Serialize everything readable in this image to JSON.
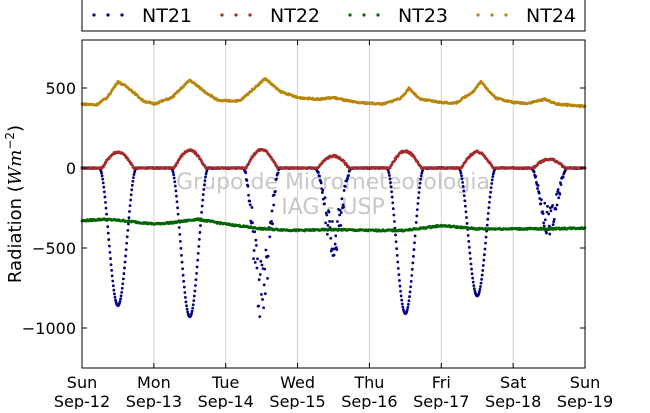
{
  "chart_data": {
    "type": "scatter",
    "title": "",
    "xlabel": "",
    "ylabel": "Radiation",
    "ylabel_unit_base": "Wm",
    "ylabel_unit_exp": "−2",
    "ylim": [
      -1250,
      800
    ],
    "xlim": [
      0,
      7
    ],
    "yticks": [
      500,
      0,
      -500,
      -1000
    ],
    "ytick_labels": [
      "500",
      "0",
      "−500",
      "−1000"
    ],
    "xticks": [
      {
        "day": 0,
        "weekday": "Sun",
        "date": "Sep-12"
      },
      {
        "day": 1,
        "weekday": "Mon",
        "date": "Sep-13"
      },
      {
        "day": 2,
        "weekday": "Tue",
        "date": "Sep-14"
      },
      {
        "day": 3,
        "weekday": "Wed",
        "date": "Sep-15"
      },
      {
        "day": 4,
        "weekday": "Thu",
        "date": "Sep-16"
      },
      {
        "day": 5,
        "weekday": "Fri",
        "date": "Sep-17"
      },
      {
        "day": 6,
        "weekday": "Sat",
        "date": "Sep-18"
      },
      {
        "day": 7,
        "weekday": "Sun",
        "date": "Sep-19"
      }
    ],
    "grid": "vertical",
    "legend_position": "top",
    "watermark": [
      "Grupo de Micrometeorologia",
      "IAG - USP"
    ],
    "series": [
      {
        "name": "NT21",
        "color": "#000080",
        "baseline": 0,
        "daily_minimum": [
          -860,
          -930,
          -960,
          -560,
          -910,
          -800,
          -440
        ],
        "daily_peak_time": [
          0.5,
          0.5,
          0.5,
          0.5,
          0.5,
          0.5,
          0.5
        ]
      },
      {
        "name": "NT22",
        "color": "#a52a2a",
        "baseline": 0,
        "daily_maximum": [
          100,
          110,
          115,
          75,
          105,
          100,
          55
        ]
      },
      {
        "name": "NT23",
        "color": "#006400",
        "points": [
          [
            0.0,
            -330
          ],
          [
            0.3,
            -320
          ],
          [
            0.6,
            -330
          ],
          [
            1.0,
            -350
          ],
          [
            1.3,
            -340
          ],
          [
            1.6,
            -320
          ],
          [
            2.0,
            -350
          ],
          [
            2.5,
            -380
          ],
          [
            3.0,
            -390
          ],
          [
            3.5,
            -385
          ],
          [
            4.0,
            -390
          ],
          [
            4.5,
            -390
          ],
          [
            5.0,
            -360
          ],
          [
            5.5,
            -380
          ],
          [
            6.0,
            -380
          ],
          [
            6.5,
            -380
          ],
          [
            7.0,
            -375
          ]
        ]
      },
      {
        "name": "NT24",
        "color": "#b8860b",
        "points": [
          [
            0.0,
            400
          ],
          [
            0.2,
            395
          ],
          [
            0.35,
            440
          ],
          [
            0.5,
            540
          ],
          [
            0.65,
            500
          ],
          [
            0.85,
            420
          ],
          [
            1.0,
            400
          ],
          [
            1.25,
            440
          ],
          [
            1.5,
            550
          ],
          [
            1.7,
            480
          ],
          [
            1.9,
            420
          ],
          [
            2.2,
            420
          ],
          [
            2.4,
            500
          ],
          [
            2.55,
            560
          ],
          [
            2.75,
            480
          ],
          [
            3.0,
            440
          ],
          [
            3.3,
            430
          ],
          [
            3.5,
            440
          ],
          [
            3.6,
            430
          ],
          [
            3.8,
            410
          ],
          [
            4.2,
            400
          ],
          [
            4.45,
            440
          ],
          [
            4.55,
            500
          ],
          [
            4.7,
            430
          ],
          [
            5.0,
            410
          ],
          [
            5.2,
            405
          ],
          [
            5.45,
            480
          ],
          [
            5.55,
            540
          ],
          [
            5.75,
            440
          ],
          [
            6.0,
            410
          ],
          [
            6.2,
            405
          ],
          [
            6.45,
            430
          ],
          [
            6.6,
            400
          ],
          [
            7.0,
            385
          ]
        ]
      }
    ]
  }
}
